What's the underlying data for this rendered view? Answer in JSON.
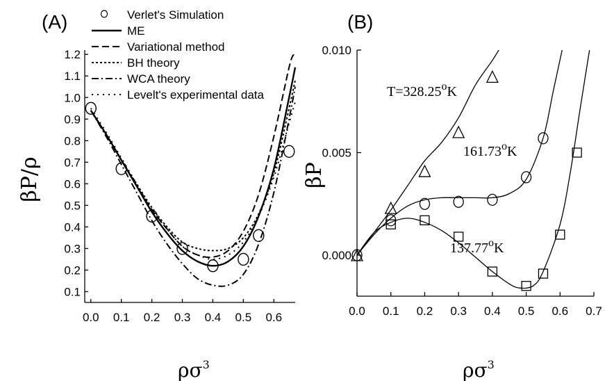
{
  "chart_data": [
    {
      "panel_label": "(A)",
      "type": "line",
      "ylabel": "βP/ρ",
      "xlabel": "ρσ",
      "xlabel_sup": "3",
      "xlim": [
        -0.02,
        0.67
      ],
      "ylim": [
        0.05,
        1.22
      ],
      "xticks": [
        "0.0",
        "0.1",
        "0.2",
        "0.3",
        "0.4",
        "0.5",
        "0.6"
      ],
      "yticks": [
        "0.1",
        "0.2",
        "0.3",
        "0.4",
        "0.5",
        "0.6",
        "0.7",
        "0.8",
        "0.9",
        "1.0",
        "1.1",
        "1.2"
      ],
      "legend_position": "top",
      "series": [
        {
          "name": "Verlet's Simulation",
          "style": "circles",
          "x": [
            0.0,
            0.1,
            0.2,
            0.3,
            0.4,
            0.5,
            0.55,
            0.65
          ],
          "y": [
            0.95,
            0.67,
            0.45,
            0.3,
            0.22,
            0.25,
            0.36,
            0.75
          ]
        },
        {
          "name": "ME",
          "style": "solid",
          "x": [
            0.0,
            0.05,
            0.1,
            0.15,
            0.2,
            0.25,
            0.3,
            0.35,
            0.4,
            0.45,
            0.5,
            0.55,
            0.6,
            0.65,
            0.67
          ],
          "y": [
            0.94,
            0.83,
            0.71,
            0.59,
            0.47,
            0.37,
            0.29,
            0.24,
            0.22,
            0.24,
            0.31,
            0.45,
            0.67,
            1.0,
            1.14
          ]
        },
        {
          "name": "Variational method",
          "style": "dashed",
          "x": [
            0.0,
            0.05,
            0.1,
            0.15,
            0.2,
            0.25,
            0.3,
            0.35,
            0.4,
            0.45,
            0.5,
            0.55,
            0.6,
            0.65,
            0.665
          ],
          "y": [
            0.94,
            0.83,
            0.71,
            0.59,
            0.48,
            0.39,
            0.31,
            0.27,
            0.26,
            0.29,
            0.38,
            0.55,
            0.82,
            1.14,
            1.2
          ]
        },
        {
          "name": "BH theory",
          "style": "dotted",
          "x": [
            0.0,
            0.05,
            0.1,
            0.15,
            0.2,
            0.25,
            0.3,
            0.35,
            0.4,
            0.45,
            0.5,
            0.55,
            0.6,
            0.65,
            0.67
          ],
          "y": [
            0.94,
            0.83,
            0.71,
            0.6,
            0.49,
            0.4,
            0.33,
            0.3,
            0.29,
            0.3,
            0.35,
            0.46,
            0.65,
            0.95,
            1.08
          ]
        },
        {
          "name": "WCA theory",
          "style": "dashdot",
          "x": [
            0.0,
            0.05,
            0.1,
            0.15,
            0.2,
            0.25,
            0.3,
            0.35,
            0.4,
            0.45,
            0.5,
            0.55,
            0.6,
            0.65,
            0.67
          ],
          "y": [
            0.94,
            0.82,
            0.69,
            0.56,
            0.43,
            0.32,
            0.23,
            0.16,
            0.13,
            0.13,
            0.18,
            0.32,
            0.56,
            0.9,
            1.05
          ]
        },
        {
          "name": "Levelt's experimental data",
          "style": "sparse-dotted",
          "x": [
            0.0,
            0.05,
            0.1,
            0.15,
            0.2,
            0.25,
            0.3,
            0.35,
            0.4,
            0.45,
            0.5,
            0.55,
            0.6,
            0.65,
            0.67
          ],
          "y": [
            0.95,
            0.84,
            0.72,
            0.6,
            0.48,
            0.39,
            0.31,
            0.27,
            0.25,
            0.27,
            0.33,
            0.45,
            0.63,
            0.88,
            0.98
          ]
        }
      ]
    },
    {
      "panel_label": "(B)",
      "type": "line",
      "ylabel": "βP",
      "xlabel": "ρσ",
      "xlabel_sup": "3",
      "xlim": [
        0.0,
        0.7
      ],
      "ylim": [
        -0.002,
        0.01
      ],
      "xticks": [
        "0.0",
        "0.1",
        "0.2",
        "0.3",
        "0.4",
        "0.5",
        "0.6",
        "0.7"
      ],
      "yticks": [
        "0.000",
        "0.005",
        "0.010"
      ],
      "annotations": [
        {
          "text": "T=328.25",
          "sup": "o",
          "suffix": "K"
        },
        {
          "text": "161.73",
          "sup": "o",
          "suffix": "K"
        },
        {
          "text": "137.77",
          "sup": "o",
          "suffix": "K"
        }
      ],
      "series": [
        {
          "label": "T=328.25K",
          "marker": "triangle",
          "x": [
            0.0,
            0.1,
            0.2,
            0.3,
            0.4
          ],
          "y": [
            0.0,
            0.0023,
            0.0041,
            0.006,
            0.0087
          ],
          "curve_x": [
            0.0,
            0.05,
            0.1,
            0.15,
            0.2,
            0.25,
            0.3,
            0.35,
            0.4,
            0.43
          ],
          "curve_y": [
            0.0,
            0.0011,
            0.0022,
            0.0034,
            0.0046,
            0.0055,
            0.0067,
            0.0083,
            0.0095,
            0.0103
          ]
        },
        {
          "label": "161.73K",
          "marker": "circle",
          "x": [
            0.0,
            0.1,
            0.2,
            0.3,
            0.4,
            0.5,
            0.55
          ],
          "y": [
            0.0,
            0.0017,
            0.0025,
            0.0026,
            0.0027,
            0.0038,
            0.0057
          ],
          "curve_x": [
            0.0,
            0.05,
            0.1,
            0.15,
            0.2,
            0.25,
            0.3,
            0.35,
            0.4,
            0.45,
            0.5,
            0.55,
            0.58,
            0.61
          ],
          "curve_y": [
            0.0,
            0.001,
            0.0018,
            0.0024,
            0.0027,
            0.0028,
            0.0028,
            0.0028,
            0.0028,
            0.003,
            0.0037,
            0.0057,
            0.008,
            0.0103
          ]
        },
        {
          "label": "137.77K",
          "marker": "square",
          "x": [
            0.1,
            0.2,
            0.3,
            0.4,
            0.5,
            0.55,
            0.6,
            0.65
          ],
          "y": [
            0.0015,
            0.0017,
            0.0009,
            -0.0008,
            -0.0015,
            -0.0009,
            0.001,
            0.005
          ],
          "curve_x": [
            0.0,
            0.05,
            0.1,
            0.15,
            0.2,
            0.25,
            0.3,
            0.35,
            0.4,
            0.45,
            0.48,
            0.52,
            0.55,
            0.6,
            0.63,
            0.66,
            0.69
          ],
          "curve_y": [
            0.0,
            0.0011,
            0.0016,
            0.0018,
            0.0016,
            0.0012,
            0.0006,
            -0.0001,
            -0.0008,
            -0.0014,
            -0.0016,
            -0.0015,
            -0.0008,
            0.0015,
            0.004,
            0.0072,
            0.0103
          ]
        }
      ]
    }
  ]
}
